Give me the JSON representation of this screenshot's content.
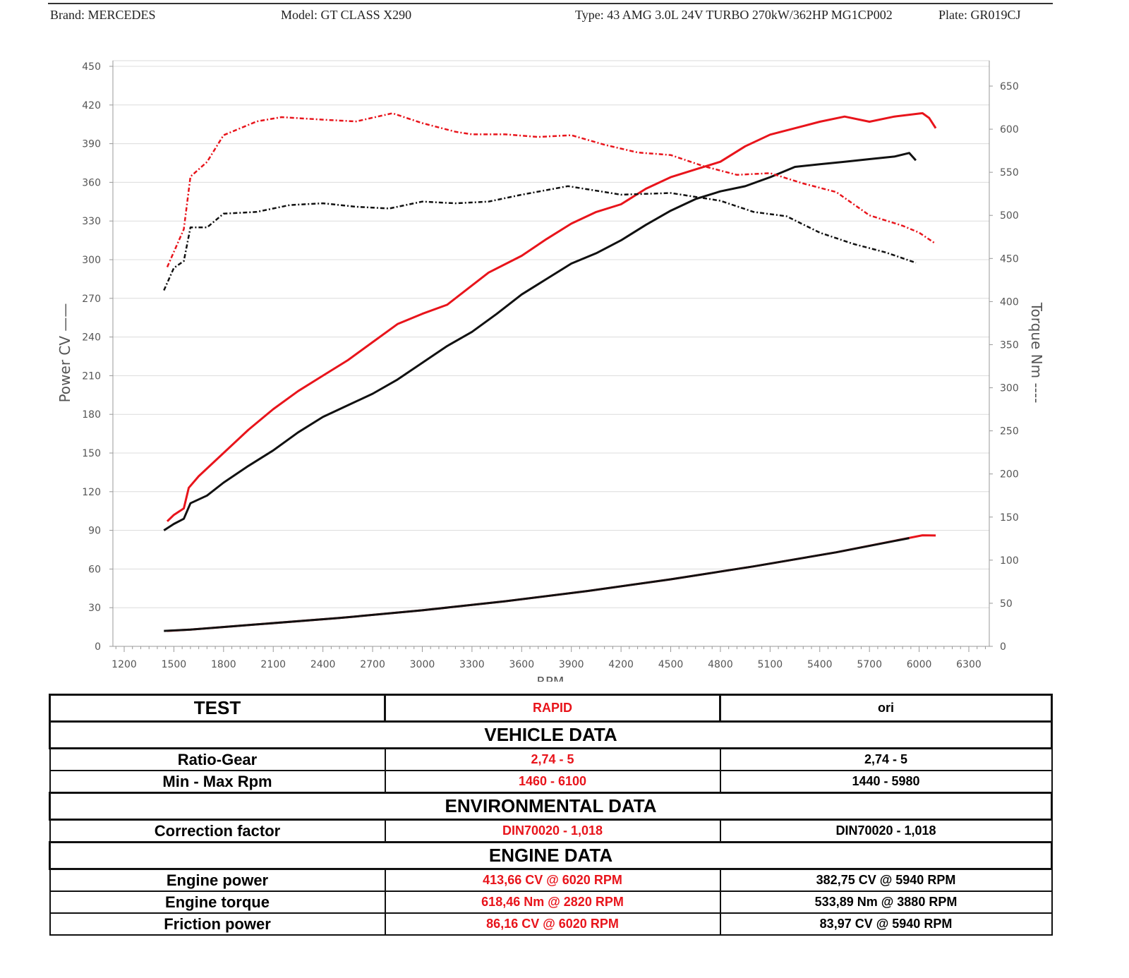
{
  "header": {
    "brand": "Brand: MERCEDES",
    "model": "Model: GT CLASS X290",
    "type": "Type: 43 AMG 3.0L 24V TURBO 270kW/362HP MG1CP002",
    "plate": "Plate: GR019CJ"
  },
  "chart_data": {
    "type": "line",
    "xlabel": "RPM",
    "ylabel": "Power CV",
    "y2label": "Torque Nm",
    "xlim": [
      1132,
      6424
    ],
    "ylim": [
      0,
      450
    ],
    "y2lim": [
      0,
      668
    ],
    "xticks": [
      1200,
      1500,
      1800,
      2100,
      2400,
      2700,
      3000,
      3300,
      3600,
      3900,
      4200,
      4500,
      4800,
      5100,
      5400,
      5700,
      6000,
      6300
    ],
    "yticks": [
      0,
      30,
      60,
      90,
      120,
      150,
      180,
      210,
      240,
      270,
      300,
      330,
      360,
      390,
      420,
      450
    ],
    "y2ticks": [
      0,
      50,
      100,
      150,
      200,
      250,
      300,
      350,
      400,
      450,
      500,
      550,
      600,
      650
    ],
    "grid": true,
    "colors": {
      "RAPID": "#e8141b",
      "ori": "#111111"
    },
    "series": [
      {
        "name": "RAPID power",
        "test": "RAPID",
        "axis": "left",
        "style": "solid",
        "points": [
          [
            1460,
            97
          ],
          [
            1500,
            102
          ],
          [
            1560,
            107
          ],
          [
            1590,
            123
          ],
          [
            1650,
            132
          ],
          [
            1800,
            150
          ],
          [
            1950,
            168
          ],
          [
            2100,
            184
          ],
          [
            2250,
            198
          ],
          [
            2400,
            210
          ],
          [
            2550,
            222
          ],
          [
            2700,
            236
          ],
          [
            2850,
            250
          ],
          [
            3000,
            258
          ],
          [
            3150,
            265
          ],
          [
            3250,
            275
          ],
          [
            3400,
            290
          ],
          [
            3600,
            303
          ],
          [
            3750,
            316
          ],
          [
            3900,
            328
          ],
          [
            4050,
            337
          ],
          [
            4200,
            343
          ],
          [
            4350,
            355
          ],
          [
            4500,
            364
          ],
          [
            4650,
            370
          ],
          [
            4800,
            376
          ],
          [
            4950,
            388
          ],
          [
            5100,
            397
          ],
          [
            5250,
            402
          ],
          [
            5400,
            407
          ],
          [
            5550,
            411
          ],
          [
            5700,
            407
          ],
          [
            5850,
            411
          ],
          [
            6020,
            413.66
          ],
          [
            6060,
            410
          ],
          [
            6100,
            402
          ]
        ]
      },
      {
        "name": "ori power",
        "test": "ori",
        "axis": "left",
        "style": "solid",
        "points": [
          [
            1440,
            90
          ],
          [
            1500,
            95
          ],
          [
            1560,
            99
          ],
          [
            1600,
            111
          ],
          [
            1700,
            117
          ],
          [
            1800,
            127
          ],
          [
            1950,
            140
          ],
          [
            2100,
            152
          ],
          [
            2250,
            166
          ],
          [
            2400,
            178
          ],
          [
            2550,
            187
          ],
          [
            2700,
            196
          ],
          [
            2850,
            207
          ],
          [
            3000,
            220
          ],
          [
            3150,
            233
          ],
          [
            3300,
            244
          ],
          [
            3450,
            258
          ],
          [
            3600,
            273
          ],
          [
            3750,
            285
          ],
          [
            3900,
            297
          ],
          [
            4050,
            305
          ],
          [
            4200,
            315
          ],
          [
            4350,
            327
          ],
          [
            4500,
            338
          ],
          [
            4650,
            347
          ],
          [
            4800,
            353
          ],
          [
            4950,
            357
          ],
          [
            5100,
            364
          ],
          [
            5250,
            372
          ],
          [
            5400,
            374
          ],
          [
            5550,
            376
          ],
          [
            5700,
            378
          ],
          [
            5850,
            380
          ],
          [
            5940,
            382.75
          ],
          [
            5980,
            377
          ]
        ]
      },
      {
        "name": "RAPID torque",
        "test": "RAPID",
        "axis": "right",
        "style": "dashed",
        "points": [
          [
            1460,
            440
          ],
          [
            1560,
            484
          ],
          [
            1600,
            545
          ],
          [
            1700,
            562
          ],
          [
            1800,
            593
          ],
          [
            2000,
            609
          ],
          [
            2150,
            614
          ],
          [
            2400,
            611
          ],
          [
            2600,
            609
          ],
          [
            2820,
            618.46
          ],
          [
            3000,
            607
          ],
          [
            3200,
            597
          ],
          [
            3300,
            594
          ],
          [
            3500,
            594
          ],
          [
            3700,
            591
          ],
          [
            3900,
            593
          ],
          [
            4100,
            582
          ],
          [
            4300,
            573
          ],
          [
            4500,
            570
          ],
          [
            4700,
            557
          ],
          [
            4900,
            547
          ],
          [
            5100,
            549
          ],
          [
            5300,
            537
          ],
          [
            5500,
            527
          ],
          [
            5700,
            500
          ],
          [
            5900,
            488
          ],
          [
            6000,
            480
          ],
          [
            6100,
            467
          ]
        ]
      },
      {
        "name": "ori torque",
        "test": "ori",
        "axis": "right",
        "style": "dashed",
        "points": [
          [
            1440,
            413
          ],
          [
            1500,
            439
          ],
          [
            1560,
            447
          ],
          [
            1600,
            486
          ],
          [
            1700,
            486
          ],
          [
            1800,
            502
          ],
          [
            2000,
            504
          ],
          [
            2200,
            512
          ],
          [
            2400,
            514
          ],
          [
            2600,
            510
          ],
          [
            2800,
            508
          ],
          [
            3000,
            516
          ],
          [
            3200,
            514
          ],
          [
            3400,
            516
          ],
          [
            3600,
            524
          ],
          [
            3880,
            533.89
          ],
          [
            4200,
            524
          ],
          [
            4500,
            526
          ],
          [
            4800,
            517
          ],
          [
            5000,
            504
          ],
          [
            5200,
            499
          ],
          [
            5400,
            480
          ],
          [
            5600,
            467
          ],
          [
            5800,
            457
          ],
          [
            5980,
            445
          ]
        ]
      },
      {
        "name": "RAPID friction power",
        "test": "RAPID",
        "axis": "left",
        "style": "solid",
        "points": [
          [
            1460,
            12
          ],
          [
            1600,
            13
          ],
          [
            2000,
            17
          ],
          [
            2500,
            22
          ],
          [
            3000,
            28
          ],
          [
            3500,
            35
          ],
          [
            4000,
            43
          ],
          [
            4500,
            52
          ],
          [
            5000,
            62
          ],
          [
            5500,
            73
          ],
          [
            6020,
            86.16
          ],
          [
            6100,
            86
          ]
        ]
      },
      {
        "name": "ori friction power",
        "test": "ori",
        "axis": "left",
        "style": "solid",
        "points": [
          [
            1440,
            12
          ],
          [
            1600,
            13
          ],
          [
            2000,
            17
          ],
          [
            2500,
            22
          ],
          [
            3000,
            28
          ],
          [
            3500,
            35
          ],
          [
            4000,
            43
          ],
          [
            4500,
            52
          ],
          [
            5000,
            62
          ],
          [
            5500,
            73
          ],
          [
            5940,
            83.97
          ]
        ]
      }
    ]
  },
  "table": {
    "test_label": "TEST",
    "col_rapid": "RAPID",
    "col_ori": "ori",
    "sections": [
      {
        "title": "VEHICLE DATA",
        "rows": [
          {
            "label": "Ratio-Gear",
            "rapid": "2,74 - 5",
            "ori": "2,74 - 5"
          },
          {
            "label": "Min - Max Rpm",
            "rapid": "1460 - 6100",
            "ori": "1440 - 5980"
          }
        ]
      },
      {
        "title": "ENVIRONMENTAL DATA",
        "rows": [
          {
            "label": "Correction factor",
            "rapid": "DIN70020 - 1,018",
            "ori": "DIN70020 - 1,018"
          }
        ]
      },
      {
        "title": "ENGINE DATA",
        "rows": [
          {
            "label": "Engine power",
            "rapid": "413,66 CV @ 6020 RPM",
            "ori": "382,75 CV @ 5940 RPM"
          },
          {
            "label": "Engine torque",
            "rapid": "618,46 Nm @ 2820 RPM",
            "ori": "533,89 Nm @ 3880 RPM"
          },
          {
            "label": "Friction power",
            "rapid": "86,16 CV @ 6020 RPM",
            "ori": "83,97 CV @ 5940 RPM"
          }
        ]
      }
    ]
  }
}
